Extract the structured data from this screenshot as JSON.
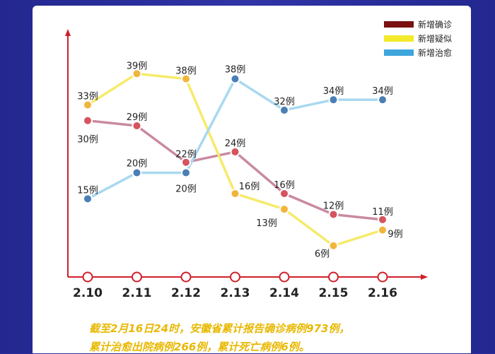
{
  "legend": [
    {
      "label": "新增确诊",
      "color": "#7a1010"
    },
    {
      "label": "新增疑似",
      "color": "#f2ea2a"
    },
    {
      "label": "新增治愈",
      "color": "#3ea6dc"
    }
  ],
  "footnote": {
    "line1": "截至2月16日24时，安徽省累计报告确诊病例973例，",
    "line2": "累计治愈出院病例266例，累计死亡病例6例。"
  },
  "chart_data": {
    "type": "line",
    "categories": [
      "2.10",
      "2.11",
      "2.12",
      "2.13",
      "2.14",
      "2.15",
      "2.16"
    ],
    "ylim": [
      0,
      45
    ],
    "series": [
      {
        "name": "新增确诊",
        "values": [
          30,
          29,
          22,
          24,
          16,
          12,
          11
        ],
        "labels": [
          "30例",
          "29例",
          "22例",
          "24例",
          "16例",
          "12例",
          "11例"
        ],
        "color": "#7a1010",
        "line_color": "#c98aa0",
        "point_color": "#d6545f"
      },
      {
        "name": "新增疑似",
        "values": [
          33,
          39,
          38,
          16,
          13,
          6,
          9
        ],
        "labels": [
          "33例",
          "39例",
          "38例",
          "16例",
          "13例",
          "6例",
          "9例"
        ],
        "color": "#f2ea2a",
        "line_color": "#f7ea6a",
        "point_color": "#f2b53c"
      },
      {
        "name": "新增治愈",
        "values": [
          15,
          20,
          20,
          38,
          32,
          34,
          34
        ],
        "labels": [
          "15例",
          "20例",
          "20例",
          "38例",
          "32例",
          "34例",
          "34例"
        ],
        "color": "#3ea6dc",
        "line_color": "#a9d8f0",
        "point_color": "#4a7fb5"
      }
    ],
    "axis_color": "#d0202a"
  }
}
